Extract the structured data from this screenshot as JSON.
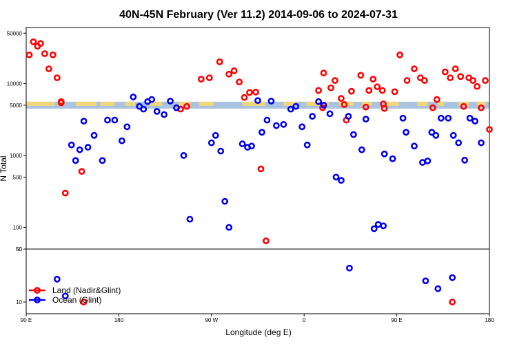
{
  "chart_data": {
    "type": "scatter",
    "title": "40N-45N February (Ver 11.2)   2014-09-06 to 2024-07-31",
    "xlabel": "Longitude (deg E)",
    "ylabel": "N Total",
    "x_ticks": [
      "90 E",
      "180",
      "90 W",
      "0",
      "90 E",
      "180"
    ],
    "x_range_unwrapped_deg": [
      90,
      540
    ],
    "upper_panel": {
      "scale": "log",
      "ylim": [
        50,
        60000
      ],
      "y_ticks": [
        "50000",
        "10000",
        "5000",
        "1000",
        "500",
        "100",
        "50"
      ],
      "band_y": 5000
    },
    "lower_panel": {
      "scale": "log",
      "ylim": [
        7,
        50
      ],
      "y_ticks": [
        "50",
        "10"
      ]
    },
    "series": [
      {
        "name": "Land (Nadir&Glint)",
        "color": "#ff0000",
        "points": [
          [
            93,
            25000
          ],
          [
            97,
            38000
          ],
          [
            101,
            33000
          ],
          [
            104,
            36000
          ],
          [
            108,
            26000
          ],
          [
            112,
            16000
          ],
          [
            116,
            25000
          ],
          [
            120,
            12000
          ],
          [
            124,
            5600
          ],
          [
            128,
            300
          ],
          [
            144,
            600
          ],
          [
            240,
            4400
          ],
          [
            246,
            4800
          ],
          [
            260,
            11500
          ],
          [
            268,
            12000
          ],
          [
            278,
            20000
          ],
          [
            287,
            13500
          ],
          [
            292,
            15000
          ],
          [
            297,
            10500
          ],
          [
            302,
            6400
          ],
          [
            307,
            7500
          ],
          [
            313,
            7600
          ],
          [
            318,
            650
          ],
          [
            323,
            65
          ],
          [
            374,
            8000
          ],
          [
            379,
            14000
          ],
          [
            386,
            8700
          ],
          [
            390,
            11000
          ],
          [
            396,
            6200
          ],
          [
            401,
            3100
          ],
          [
            406,
            7800
          ],
          [
            415,
            13000
          ],
          [
            420,
            4700
          ],
          [
            423,
            8000
          ],
          [
            427,
            11500
          ],
          [
            431,
            9000
          ],
          [
            436,
            8000
          ],
          [
            438,
            4500
          ],
          [
            448,
            7700
          ],
          [
            453,
            25000
          ],
          [
            460,
            11000
          ],
          [
            467,
            16000
          ],
          [
            473,
            12000
          ],
          [
            477,
            11000
          ],
          [
            485,
            4600
          ],
          [
            489,
            6000
          ],
          [
            497,
            14500
          ],
          [
            502,
            12000
          ],
          [
            507,
            16000
          ],
          [
            512,
            12500
          ],
          [
            520,
            12000
          ],
          [
            524,
            11000
          ],
          [
            528,
            9100
          ],
          [
            532,
            4600
          ],
          [
            536,
            11000
          ],
          [
            540,
            2300
          ],
          [
            124,
            5400
          ],
          [
            378,
            4600
          ],
          [
            399,
            5100
          ],
          [
            437,
            5200
          ],
          [
            515,
            4800
          ]
        ],
        "lower_points": [
          [
            146,
            10
          ],
          [
            504,
            10
          ]
        ]
      },
      {
        "name": "Ocean (Glint)",
        "color": "#0000ee",
        "points": [
          [
            134,
            1400
          ],
          [
            138,
            850
          ],
          [
            142,
            1200
          ],
          [
            146,
            3000
          ],
          [
            150,
            1300
          ],
          [
            156,
            1900
          ],
          [
            164,
            850
          ],
          [
            169,
            3100
          ],
          [
            176,
            3100
          ],
          [
            183,
            1600
          ],
          [
            188,
            2500
          ],
          [
            194,
            6500
          ],
          [
            200,
            4800
          ],
          [
            204,
            4400
          ],
          [
            208,
            5600
          ],
          [
            212,
            6000
          ],
          [
            217,
            4100
          ],
          [
            224,
            3700
          ],
          [
            230,
            5700
          ],
          [
            236,
            4600
          ],
          [
            243,
            1000
          ],
          [
            249,
            130
          ],
          [
            270,
            1500
          ],
          [
            274,
            1900
          ],
          [
            279,
            1150
          ],
          [
            283,
            230
          ],
          [
            287,
            100
          ],
          [
            300,
            1450
          ],
          [
            305,
            1300
          ],
          [
            309,
            1350
          ],
          [
            315,
            5800
          ],
          [
            319,
            2100
          ],
          [
            324,
            3100
          ],
          [
            328,
            5700
          ],
          [
            333,
            2600
          ],
          [
            340,
            2700
          ],
          [
            347,
            4400
          ],
          [
            352,
            4800
          ],
          [
            358,
            2500
          ],
          [
            363,
            1400
          ],
          [
            368,
            3500
          ],
          [
            374,
            5600
          ],
          [
            379,
            5000
          ],
          [
            385,
            3800
          ],
          [
            391,
            500
          ],
          [
            396,
            450
          ],
          [
            403,
            3500
          ],
          [
            408,
            1950
          ],
          [
            416,
            1200
          ],
          [
            420,
            3200
          ],
          [
            428,
            96
          ],
          [
            432,
            110
          ],
          [
            437,
            105
          ],
          [
            438,
            1050
          ],
          [
            446,
            900
          ],
          [
            456,
            3300
          ],
          [
            459,
            2100
          ],
          [
            467,
            1350
          ],
          [
            475,
            800
          ],
          [
            480,
            840
          ],
          [
            484,
            2100
          ],
          [
            488,
            1900
          ],
          [
            493,
            3300
          ],
          [
            500,
            3300
          ],
          [
            505,
            1900
          ],
          [
            510,
            1500
          ],
          [
            516,
            860
          ],
          [
            521,
            3300
          ],
          [
            526,
            3000
          ],
          [
            532,
            1500
          ]
        ],
        "lower_points": [
          [
            120,
            20
          ],
          [
            128,
            12
          ],
          [
            404,
            28
          ],
          [
            478,
            19
          ],
          [
            490,
            15
          ],
          [
            504,
            21
          ]
        ]
      }
    ],
    "legend_position": "bottom-left"
  }
}
